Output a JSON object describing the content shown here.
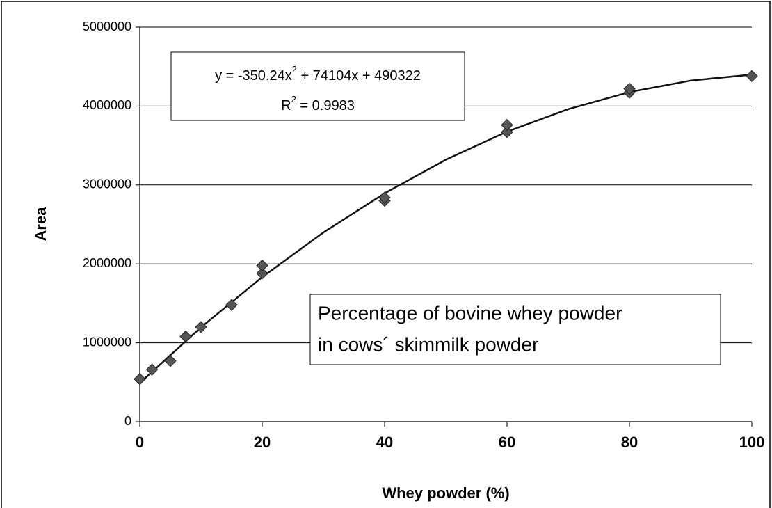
{
  "chart_data": {
    "type": "scatter",
    "x_label": "Whey powder (%)",
    "y_label": "Area",
    "xlim": [
      0,
      100
    ],
    "xticks": [
      0,
      20,
      40,
      60,
      80,
      100
    ],
    "ylim": [
      0,
      5000000
    ],
    "yticks": [
      0,
      1000000,
      2000000,
      3000000,
      4000000,
      5000000
    ],
    "grid": true,
    "series": [
      {
        "name": null,
        "color": "#555555",
        "x": [
          0,
          2,
          5,
          7.5,
          10,
          15,
          20,
          20,
          40,
          40,
          60,
          60,
          80,
          80,
          100
        ],
        "values": [
          540000,
          660000,
          770000,
          1080000,
          1200000,
          1480000,
          1880000,
          1980000,
          2800000,
          2840000,
          3670000,
          3760000,
          4170000,
          4220000,
          4380000
        ]
      }
    ],
    "trendline": {
      "color": "#111111",
      "x": [
        0,
        10,
        20,
        30,
        40,
        50,
        60,
        70,
        80,
        90,
        100
      ],
      "values": [
        490322,
        1196338,
        1832306,
        2398226,
        2894098,
        3319922,
        3675698,
        3961426,
        4177106,
        4322738,
        4398322
      ]
    },
    "equation": [
      "y = -350.24x",
      "2",
      " + 74104x + 490322"
    ],
    "r_squared": [
      "R",
      "2",
      " = 0.9983"
    ],
    "annotation": [
      "Percentage of bovine whey powder",
      "in cows´ skimmilk powder"
    ]
  }
}
